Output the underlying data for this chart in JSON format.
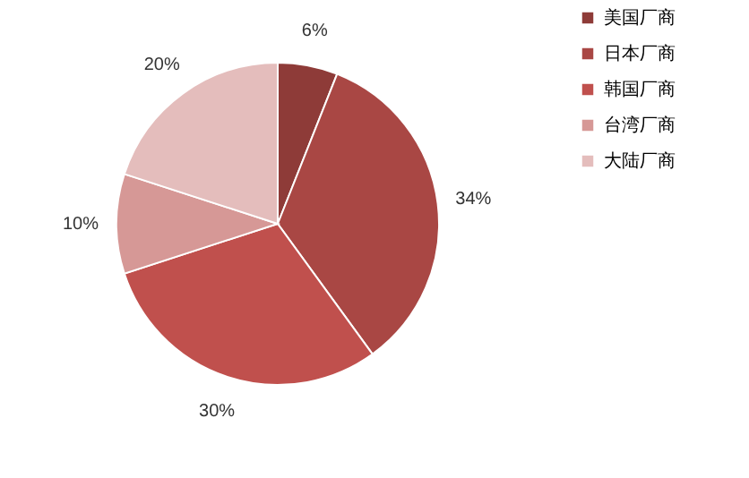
{
  "chart_data": {
    "type": "pie",
    "categories": [
      "美国厂商",
      "日本厂商",
      "韩国厂商",
      "台湾厂商",
      "大陆厂商"
    ],
    "values": [
      6,
      34,
      30,
      10,
      20
    ],
    "value_labels": [
      "6%",
      "34%",
      "30%",
      "10%",
      "20%"
    ],
    "colors": [
      "#8e3b38",
      "#a94744",
      "#c0504d",
      "#d69896",
      "#e4bdbc"
    ],
    "legend": "right"
  }
}
